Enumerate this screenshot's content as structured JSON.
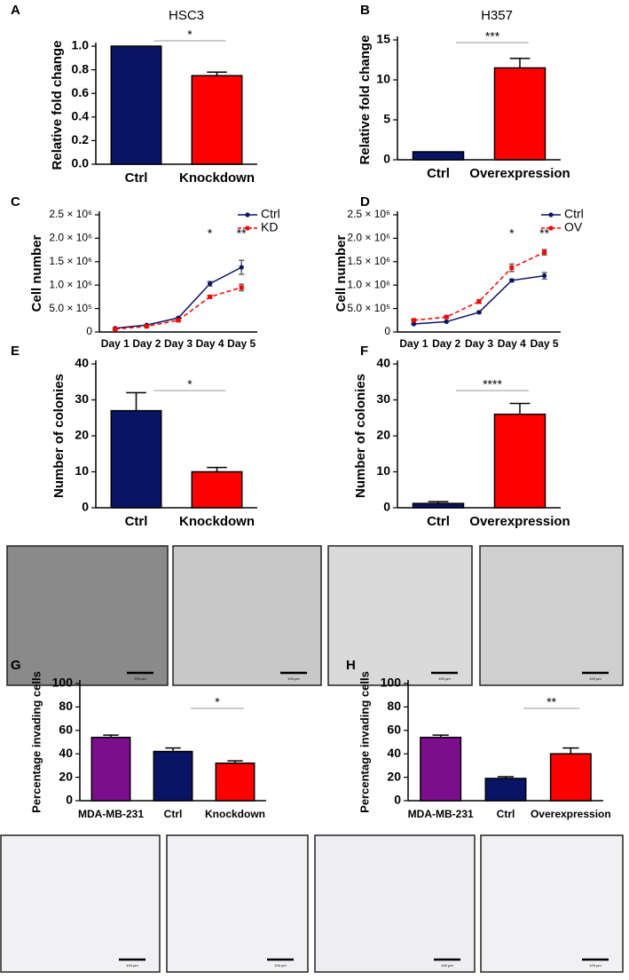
{
  "chart_data": [
    {
      "type": "bar",
      "panel": "A",
      "title": "HSC3",
      "ylabel": "Relative fold change",
      "categories": [
        "Ctrl",
        "Knockdown"
      ],
      "values": [
        1.0,
        0.75
      ],
      "errors": [
        0,
        0.03
      ],
      "colors": [
        "#0a1464",
        "#ff0000"
      ],
      "ylim": [
        0,
        1.0
      ],
      "yticks": [
        {
          "value": 0,
          "label": "0.0"
        },
        0.2,
        0.4,
        0.6,
        0.8,
        {
          "value": 1,
          "label": "1.0"
        }
      ],
      "annotation": "*"
    },
    {
      "type": "bar",
      "panel": "B",
      "title": "H357",
      "ylabel": "Relative fold change",
      "categories": [
        "Ctrl",
        "Overexpression"
      ],
      "values": [
        1.0,
        11.5
      ],
      "errors": [
        0,
        1.2
      ],
      "colors": [
        "#0a1464",
        "#ff0000"
      ],
      "ylim": [
        0,
        15
      ],
      "yticks": [
        0,
        5,
        10,
        15
      ],
      "annotation": "***"
    },
    {
      "type": "line",
      "panel": "C",
      "ylabel": "Cell number",
      "categories": [
        "Day 1",
        "Day 2",
        "Day 3",
        "Day 4",
        "Day 5"
      ],
      "series": [
        {
          "name": "Ctrl",
          "color": "#0a1464",
          "linestyle": "solid",
          "marker": "circle",
          "values": [
            80000,
            150000,
            300000,
            1030000,
            1380000
          ],
          "errors": [
            10000,
            10000,
            20000,
            50000,
            150000
          ]
        },
        {
          "name": "KD",
          "color": "#ff0000",
          "linestyle": "dashed",
          "marker": "square",
          "values": [
            60000,
            120000,
            250000,
            750000,
            950000
          ],
          "errors": [
            10000,
            10000,
            20000,
            30000,
            70000
          ]
        }
      ],
      "ylim": [
        0,
        2500000
      ],
      "yticks": [
        0,
        {
          "value": 500000,
          "label": "5.0 × 10⁵"
        },
        {
          "value": 1000000,
          "label": "1.0 × 10⁶"
        },
        {
          "value": 1500000,
          "label": "1.5 × 10⁶"
        },
        {
          "value": 2000000,
          "label": "2.0 × 10⁶"
        },
        {
          "value": 2500000,
          "label": "2.5 × 10⁶"
        }
      ],
      "point_annotations": [
        null,
        null,
        null,
        "*",
        "**"
      ]
    },
    {
      "type": "line",
      "panel": "D",
      "ylabel": "Cell number",
      "categories": [
        "Day 1",
        "Day 2",
        "Day 3",
        "Day 4",
        "Day 5"
      ],
      "series": [
        {
          "name": "Ctrl",
          "color": "#0a1464",
          "linestyle": "solid",
          "marker": "circle",
          "values": [
            170000,
            220000,
            420000,
            1100000,
            1200000
          ],
          "errors": [
            10000,
            10000,
            20000,
            30000,
            70000
          ]
        },
        {
          "name": "OV",
          "color": "#ff0000",
          "linestyle": "dashed",
          "marker": "square",
          "values": [
            250000,
            320000,
            650000,
            1370000,
            1700000
          ],
          "errors": [
            20000,
            20000,
            40000,
            80000,
            60000
          ]
        }
      ],
      "ylim": [
        0,
        2500000
      ],
      "yticks": [
        0,
        {
          "value": 500000,
          "label": "5.0 × 10⁵"
        },
        {
          "value": 1000000,
          "label": "1.0 × 10⁶"
        },
        {
          "value": 1500000,
          "label": "1.5 × 10⁶"
        },
        {
          "value": 2000000,
          "label": "2.0 × 10⁶"
        },
        {
          "value": 2500000,
          "label": "2.5 × 10⁶"
        }
      ],
      "point_annotations": [
        null,
        null,
        null,
        "*",
        "**"
      ]
    },
    {
      "type": "bar",
      "panel": "E",
      "ylabel": "Number of colonies",
      "categories": [
        "Ctrl",
        "Knockdown"
      ],
      "values": [
        27,
        10
      ],
      "errors": [
        5,
        1.2
      ],
      "colors": [
        "#0a1464",
        "#ff0000"
      ],
      "ylim": [
        0,
        40
      ],
      "yticks": [
        0,
        10,
        20,
        30,
        40
      ],
      "annotation": "*"
    },
    {
      "type": "bar",
      "panel": "F",
      "ylabel": "Number of colonies",
      "categories": [
        "Ctrl",
        "Overexpression"
      ],
      "values": [
        1.2,
        26
      ],
      "errors": [
        0.5,
        3
      ],
      "colors": [
        "#0a1464",
        "#ff0000"
      ],
      "ylim": [
        0,
        40
      ],
      "yticks": [
        0,
        10,
        20,
        30,
        40
      ],
      "annotation": "****"
    },
    {
      "type": "bar",
      "panel": "G",
      "ylabel": "Percentage invading cells",
      "categories": [
        "MDA-MB-231",
        "Ctrl",
        "Knockdown"
      ],
      "values": [
        54,
        42,
        32
      ],
      "errors": [
        2,
        3,
        2
      ],
      "colors": [
        "#7b0e8a",
        "#0a1464",
        "#ff0000"
      ],
      "ylim": [
        0,
        100
      ],
      "yticks": [
        0,
        20,
        40,
        60,
        80,
        100
      ],
      "annotation": "*"
    },
    {
      "type": "bar",
      "panel": "H",
      "ylabel": "Percentage invading cells",
      "categories": [
        "MDA-MB-231",
        "Ctrl",
        "Overexpression"
      ],
      "values": [
        54,
        19,
        40
      ],
      "errors": [
        2,
        1.5,
        5
      ],
      "colors": [
        "#7b0e8a",
        "#0a1464",
        "#ff0000"
      ],
      "ylim": [
        0,
        100
      ],
      "yticks": [
        0,
        20,
        40,
        60,
        80,
        100
      ],
      "annotation": "**"
    }
  ],
  "scale_bar_label": "100 μm"
}
